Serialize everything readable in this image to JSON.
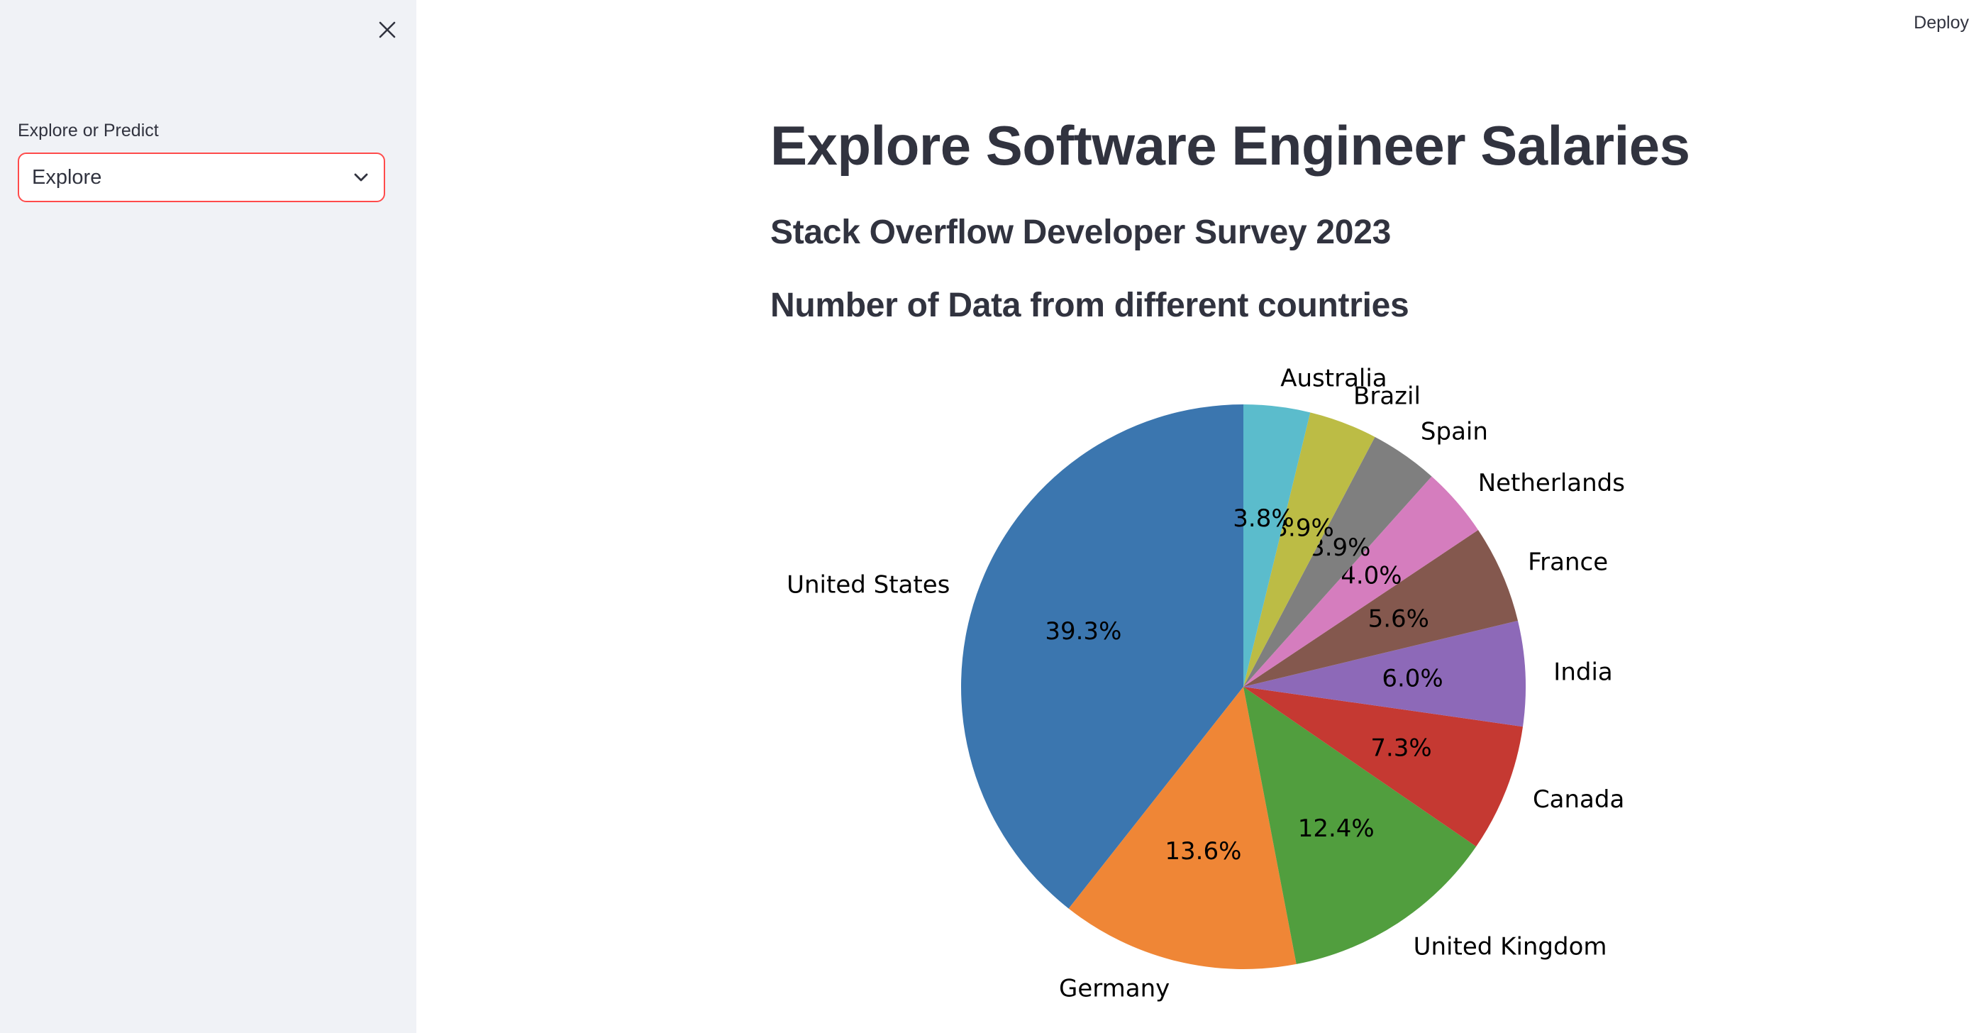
{
  "header": {
    "deploy_label": "Deploy"
  },
  "sidebar": {
    "close_icon": "close-icon",
    "select_label": "Explore or Predict",
    "select_value": "Explore",
    "select_icon": "chevron-down-icon",
    "accent_color": "#ff4b4b"
  },
  "main": {
    "title": "Explore Software Engineer Salaries",
    "subtitle": "Stack Overflow Developer Survey 2023",
    "section_title": "Number of Data from different countries"
  },
  "chart_data": {
    "type": "pie",
    "start_angle": 90,
    "direction": "counterclockwise",
    "slices": [
      {
        "label": "United States",
        "value": 39.3,
        "pct_label": "39.3%",
        "color": "#3b76af"
      },
      {
        "label": "Germany",
        "value": 13.6,
        "pct_label": "13.6%",
        "color": "#ef8636"
      },
      {
        "label": "United Kingdom",
        "value": 12.4,
        "pct_label": "12.4%",
        "color": "#519e3e"
      },
      {
        "label": "Canada",
        "value": 7.3,
        "pct_label": "7.3%",
        "color": "#c53932"
      },
      {
        "label": "India",
        "value": 6.0,
        "pct_label": "6.0%",
        "color": "#8d69b8"
      },
      {
        "label": "France",
        "value": 5.6,
        "pct_label": "5.6%",
        "color": "#84584e"
      },
      {
        "label": "Netherlands",
        "value": 4.0,
        "pct_label": "4.0%",
        "color": "#d57dbe"
      },
      {
        "label": "Spain",
        "value": 3.9,
        "pct_label": "3.9%",
        "color": "#7f7f7f"
      },
      {
        "label": "Brazil",
        "value": 3.9,
        "pct_label": "3.9%",
        "color": "#bcbc45"
      },
      {
        "label": "Australia",
        "value": 3.8,
        "pct_label": "3.8%",
        "color": "#5bbccc"
      }
    ]
  }
}
